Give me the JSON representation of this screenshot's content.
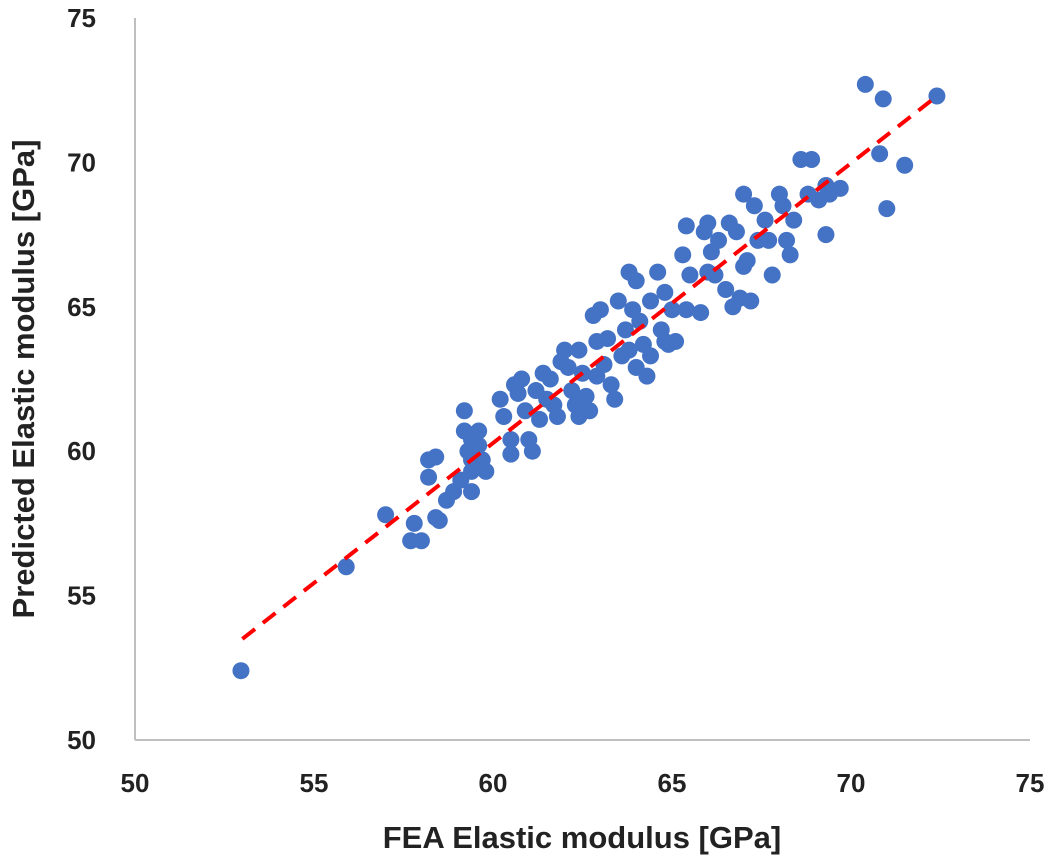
{
  "chart_data": {
    "type": "scatter",
    "title": "",
    "xlabel": "FEA Elastic modulus [GPa]",
    "ylabel": "Predicted Elastic modulus [GPa]",
    "xlim": [
      50,
      75
    ],
    "ylim": [
      50,
      75
    ],
    "xticks": [
      "50",
      "55",
      "60",
      "65",
      "70",
      "75"
    ],
    "yticks": [
      "50",
      "55",
      "60",
      "65",
      "70",
      "75"
    ],
    "grid": false,
    "marker_color": "#4472C4",
    "trendline": {
      "color": "#FF0000",
      "style": "dashed",
      "x": [
        53.0,
        72.3
      ],
      "y": [
        53.5,
        72.2
      ]
    },
    "points": [
      [
        52.96,
        52.4
      ],
      [
        55.9,
        56.0
      ],
      [
        57.0,
        57.8
      ],
      [
        57.7,
        56.9
      ],
      [
        58.0,
        56.9
      ],
      [
        57.8,
        57.5
      ],
      [
        58.4,
        57.7
      ],
      [
        58.5,
        57.6
      ],
      [
        58.2,
        59.7
      ],
      [
        58.4,
        59.8
      ],
      [
        58.2,
        59.1
      ],
      [
        58.7,
        58.3
      ],
      [
        58.9,
        58.6
      ],
      [
        59.1,
        59.0
      ],
      [
        59.2,
        61.4
      ],
      [
        59.2,
        60.7
      ],
      [
        59.4,
        60.4
      ],
      [
        59.3,
        60.0
      ],
      [
        59.4,
        59.7
      ],
      [
        59.4,
        59.3
      ],
      [
        59.4,
        58.6
      ],
      [
        59.6,
        60.7
      ],
      [
        59.6,
        60.2
      ],
      [
        59.7,
        59.7
      ],
      [
        59.8,
        59.3
      ],
      [
        60.2,
        61.8
      ],
      [
        60.3,
        61.2
      ],
      [
        60.5,
        60.4
      ],
      [
        60.5,
        59.9
      ],
      [
        60.7,
        62.0
      ],
      [
        60.8,
        62.5
      ],
      [
        60.9,
        61.4
      ],
      [
        61.0,
        60.4
      ],
      [
        61.1,
        60.0
      ],
      [
        61.2,
        62.1
      ],
      [
        61.3,
        61.1
      ],
      [
        61.5,
        61.8
      ],
      [
        61.6,
        62.5
      ],
      [
        61.8,
        61.2
      ],
      [
        61.9,
        63.1
      ],
      [
        62.0,
        63.5
      ],
      [
        62.2,
        62.1
      ],
      [
        62.3,
        61.6
      ],
      [
        62.4,
        63.5
      ],
      [
        62.5,
        62.7
      ],
      [
        62.6,
        61.9
      ],
      [
        62.7,
        61.4
      ],
      [
        62.8,
        64.7
      ],
      [
        62.9,
        63.8
      ],
      [
        63.0,
        64.9
      ],
      [
        63.1,
        63.0
      ],
      [
        63.3,
        62.3
      ],
      [
        63.4,
        61.8
      ],
      [
        63.5,
        65.2
      ],
      [
        63.7,
        64.2
      ],
      [
        63.8,
        66.2
      ],
      [
        63.8,
        63.5
      ],
      [
        64.0,
        65.9
      ],
      [
        64.1,
        64.5
      ],
      [
        64.2,
        63.7
      ],
      [
        64.3,
        62.6
      ],
      [
        64.4,
        65.2
      ],
      [
        64.6,
        66.2
      ],
      [
        64.7,
        64.2
      ],
      [
        64.8,
        65.5
      ],
      [
        64.9,
        63.7
      ],
      [
        65.0,
        64.9
      ],
      [
        65.1,
        63.8
      ],
      [
        65.3,
        66.8
      ],
      [
        65.4,
        67.8
      ],
      [
        65.5,
        66.1
      ],
      [
        65.8,
        64.8
      ],
      [
        65.9,
        67.6
      ],
      [
        66.0,
        67.9
      ],
      [
        66.1,
        66.9
      ],
      [
        66.2,
        66.1
      ],
      [
        66.3,
        67.3
      ],
      [
        66.5,
        65.6
      ],
      [
        66.6,
        67.9
      ],
      [
        66.7,
        65.0
      ],
      [
        66.8,
        67.6
      ],
      [
        67.0,
        68.9
      ],
      [
        67.1,
        66.6
      ],
      [
        67.2,
        65.2
      ],
      [
        67.3,
        68.5
      ],
      [
        67.4,
        67.3
      ],
      [
        67.6,
        68.0
      ],
      [
        67.7,
        67.3
      ],
      [
        67.8,
        66.1
      ],
      [
        68.0,
        68.9
      ],
      [
        68.1,
        68.5
      ],
      [
        68.2,
        67.3
      ],
      [
        68.3,
        66.8
      ],
      [
        68.4,
        68.0
      ],
      [
        68.6,
        70.1
      ],
      [
        68.9,
        70.1
      ],
      [
        68.8,
        68.9
      ],
      [
        69.1,
        68.7
      ],
      [
        69.3,
        69.2
      ],
      [
        69.4,
        68.9
      ],
      [
        69.7,
        69.1
      ],
      [
        69.3,
        67.5
      ],
      [
        70.4,
        72.7
      ],
      [
        70.9,
        72.2
      ],
      [
        70.8,
        70.3
      ],
      [
        71.0,
        68.4
      ],
      [
        71.5,
        69.9
      ],
      [
        72.4,
        72.3
      ],
      [
        60.6,
        62.3
      ],
      [
        61.4,
        62.7
      ],
      [
        62.1,
        62.9
      ],
      [
        62.9,
        62.6
      ],
      [
        63.6,
        63.3
      ],
      [
        64.0,
        62.9
      ],
      [
        64.4,
        63.3
      ],
      [
        64.8,
        63.8
      ],
      [
        63.2,
        63.9
      ],
      [
        61.7,
        61.6
      ],
      [
        62.4,
        61.2
      ],
      [
        63.9,
        64.9
      ],
      [
        65.4,
        64.9
      ],
      [
        66.0,
        66.2
      ],
      [
        67.0,
        66.4
      ],
      [
        66.9,
        65.3
      ]
    ]
  }
}
